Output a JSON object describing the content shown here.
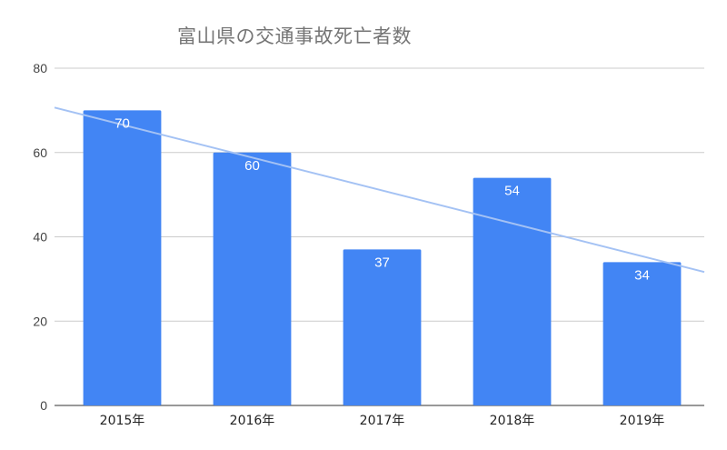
{
  "chart_data": {
    "type": "bar",
    "title": "富山県の交通事故死亡者数",
    "categories": [
      "2015年",
      "2016年",
      "2017年",
      "2018年",
      "2019年"
    ],
    "series": [
      {
        "values": [
          70,
          60,
          37,
          54,
          34
        ]
      }
    ],
    "trendline": {
      "type": "linear"
    },
    "xlabel": "",
    "ylabel": "",
    "ylim": [
      0,
      80
    ],
    "yticks": [
      0,
      20,
      40,
      60,
      80
    ],
    "grid": true,
    "data_labels": true,
    "colors": {
      "bar": "#4285f4",
      "trendline": "#a4c2f4",
      "grid": "#cccccc",
      "baseline": "#333333"
    }
  }
}
